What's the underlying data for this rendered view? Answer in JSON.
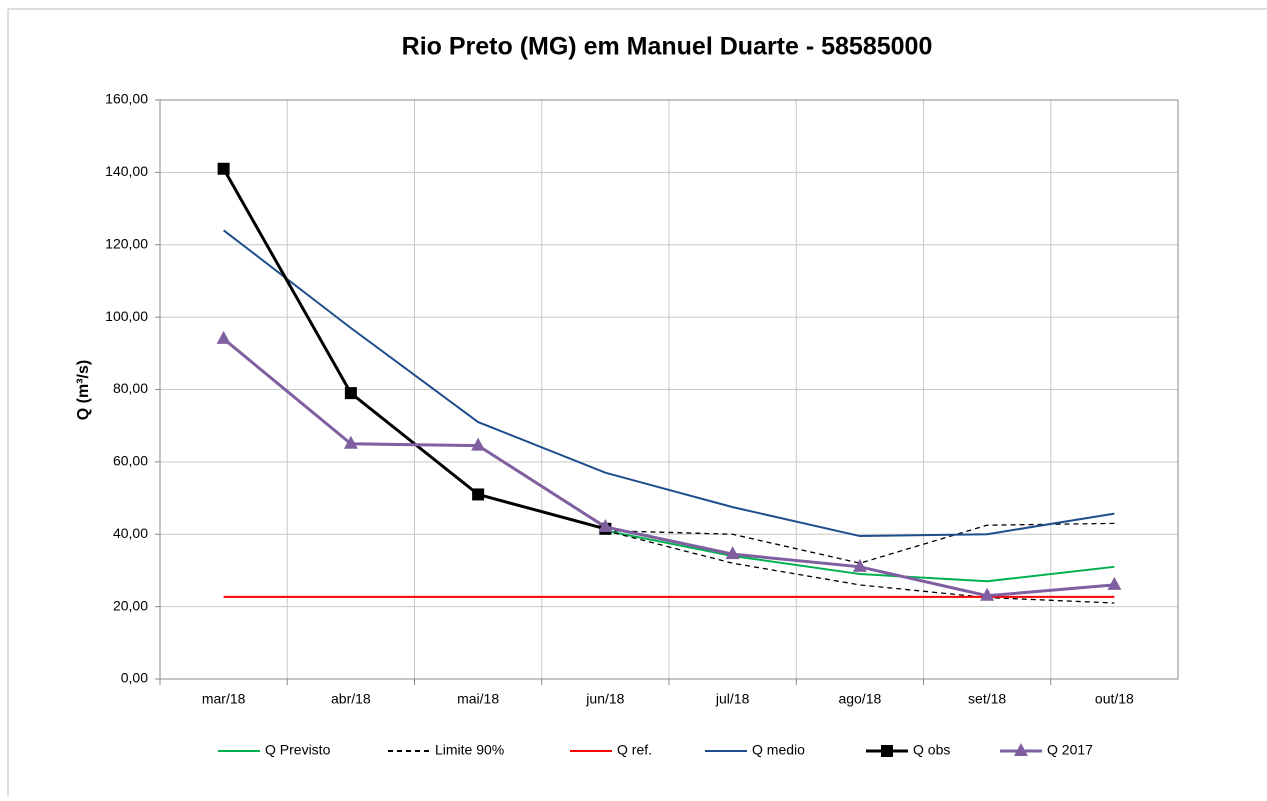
{
  "chart_data": {
    "type": "line",
    "title": "Rio Preto (MG) em Manuel Duarte - 58585000",
    "y_label": "Q (m³/s)",
    "categories": [
      "mar/18",
      "abr/18",
      "mai/18",
      "jun/18",
      "jul/18",
      "ago/18",
      "set/18",
      "out/18"
    ],
    "ylim": [
      0,
      160
    ],
    "yticks": [
      {
        "value": 0,
        "label": "0,00"
      },
      {
        "value": 20,
        "label": "20,00"
      },
      {
        "value": 40,
        "label": "40,00"
      },
      {
        "value": 60,
        "label": "60,00"
      },
      {
        "value": 80,
        "label": "80,00"
      },
      {
        "value": 100,
        "label": "100,00"
      },
      {
        "value": 120,
        "label": "120,00"
      },
      {
        "value": 140,
        "label": "140,00"
      },
      {
        "value": 160,
        "label": "160,00"
      }
    ],
    "grid": true,
    "legend": "bottom",
    "series": [
      {
        "name": "Q Previsto",
        "color": "#00b050",
        "values": [
          null,
          null,
          null,
          41,
          34,
          29,
          27,
          31
        ]
      },
      {
        "name": "Limite 90%",
        "color": "#000000",
        "dashed": true,
        "values": [
          null,
          null,
          null,
          41,
          40,
          32,
          42.5,
          43
        ],
        "lower_values": [
          null,
          null,
          null,
          41,
          32,
          26,
          22.5,
          21
        ]
      },
      {
        "name": "Q ref.",
        "color": "#ff0000",
        "values": [
          22.7,
          22.7,
          22.7,
          22.7,
          22.7,
          22.7,
          22.7,
          22.7
        ]
      },
      {
        "name": "Q medio",
        "color": "#1f4e8c",
        "values": [
          124,
          97,
          71,
          57,
          47.5,
          39.5,
          40,
          45.7
        ]
      },
      {
        "name": "Q obs",
        "color": "#000000",
        "marker": "square",
        "values": [
          141,
          79,
          51,
          41.5,
          null,
          null,
          null,
          null
        ]
      },
      {
        "name": "Q 2017",
        "color": "#7f5f9f",
        "marker": "triangle",
        "values": [
          94,
          65,
          64.5,
          42,
          34.5,
          31,
          23,
          26
        ]
      }
    ]
  }
}
